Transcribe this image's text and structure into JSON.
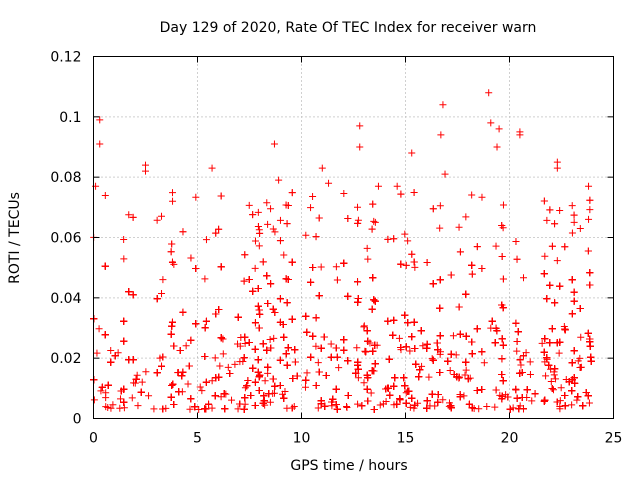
{
  "chart_data": {
    "type": "scatter",
    "title": "Day 129 of 2020, Rate Of TEC Index for receiver warn",
    "xlabel": "GPS time / hours",
    "ylabel": "ROTI / TECUs",
    "xlim": [
      0,
      25
    ],
    "ylim": [
      0,
      0.12
    ],
    "x_ticks": [
      "0",
      "5",
      "10",
      "15",
      "20",
      "25"
    ],
    "y_ticks": [
      "0",
      "0.02",
      "0.04",
      "0.06",
      "0.08",
      "0.1",
      "0.12"
    ],
    "grid": true,
    "marker": "plus",
    "series_color": "#ff0000",
    "x_range_of_data": [
      0,
      24
    ],
    "typical_band": [
      0.003,
      0.035
    ],
    "notable_points": [
      {
        "x": 0.3,
        "y": 0.099
      },
      {
        "x": 0.3,
        "y": 0.091
      },
      {
        "x": 0.1,
        "y": 0.077
      },
      {
        "x": 2.5,
        "y": 0.084
      },
      {
        "x": 2.5,
        "y": 0.082
      },
      {
        "x": 3.8,
        "y": 0.072
      },
      {
        "x": 5.7,
        "y": 0.083
      },
      {
        "x": 8.7,
        "y": 0.091
      },
      {
        "x": 8.9,
        "y": 0.079
      },
      {
        "x": 11.0,
        "y": 0.083
      },
      {
        "x": 11.3,
        "y": 0.078
      },
      {
        "x": 12.8,
        "y": 0.097
      },
      {
        "x": 12.8,
        "y": 0.09
      },
      {
        "x": 13.7,
        "y": 0.077
      },
      {
        "x": 14.6,
        "y": 0.077
      },
      {
        "x": 15.3,
        "y": 0.088
      },
      {
        "x": 16.8,
        "y": 0.104
      },
      {
        "x": 16.7,
        "y": 0.094
      },
      {
        "x": 16.9,
        "y": 0.081
      },
      {
        "x": 19.0,
        "y": 0.108
      },
      {
        "x": 19.1,
        "y": 0.098
      },
      {
        "x": 19.4,
        "y": 0.09
      },
      {
        "x": 19.5,
        "y": 0.096
      },
      {
        "x": 20.5,
        "y": 0.095
      },
      {
        "x": 20.5,
        "y": 0.094
      },
      {
        "x": 22.3,
        "y": 0.085
      },
      {
        "x": 22.3,
        "y": 0.083
      },
      {
        "x": 23.8,
        "y": 0.077
      },
      {
        "x": 23.8,
        "y": 0.066
      }
    ]
  }
}
